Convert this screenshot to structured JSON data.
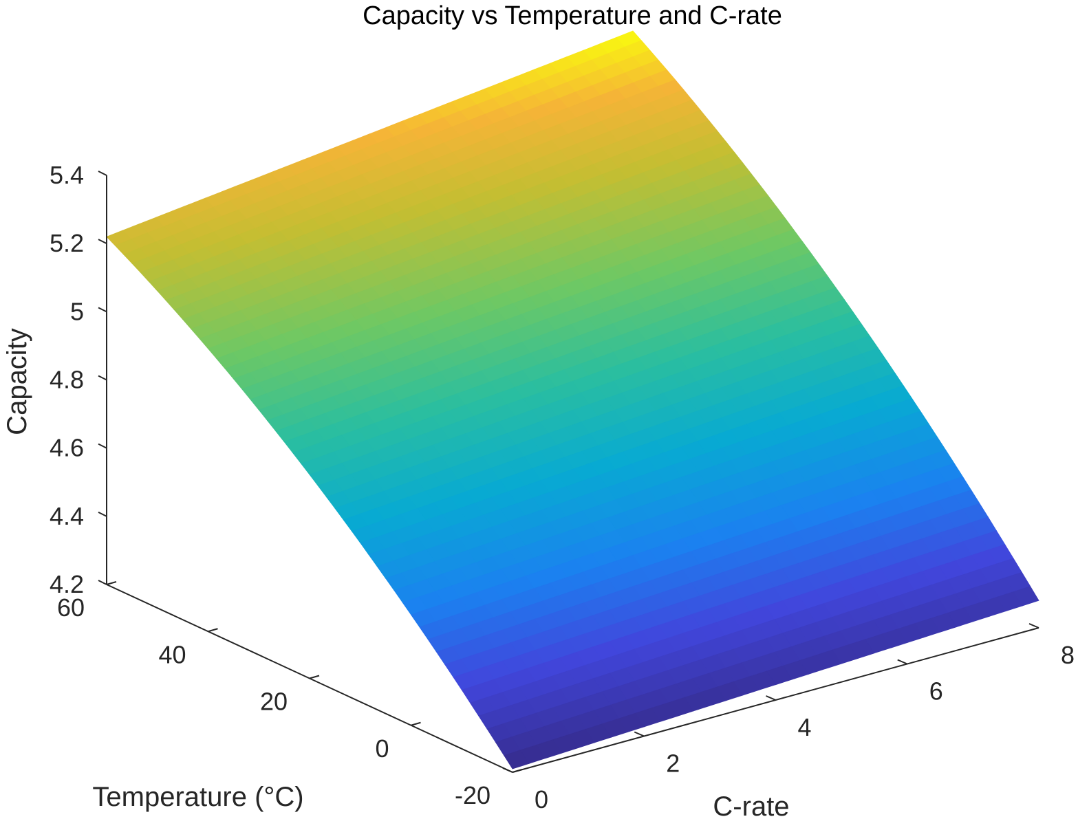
{
  "chart_data": {
    "type": "surface",
    "title": "Capacity vs Temperature and C-rate",
    "xlabel": "C-rate",
    "ylabel": "Temperature (°C)",
    "zlabel": "Capacity",
    "xlim": [
      0,
      8
    ],
    "ylim": [
      -20,
      60
    ],
    "zlim": [
      4.2,
      5.4
    ],
    "x_ticks": [
      "0",
      "2",
      "4",
      "6",
      "8"
    ],
    "y_ticks": [
      "-20",
      "0",
      "20",
      "40",
      "60"
    ],
    "z_ticks": [
      "4.2",
      "4.4",
      "4.6",
      "4.8",
      "5",
      "5.2",
      "5.4"
    ],
    "colormap": "parula",
    "grid": false,
    "corners": [
      {
        "c_rate": 0,
        "temperature": -20,
        "capacity": 4.21
      },
      {
        "c_rate": 8,
        "temperature": -20,
        "capacity": 4.28
      },
      {
        "c_rate": 0,
        "temperature": 60,
        "capacity": 5.22
      },
      {
        "c_rate": 8,
        "temperature": 60,
        "capacity": 5.4
      }
    ]
  }
}
